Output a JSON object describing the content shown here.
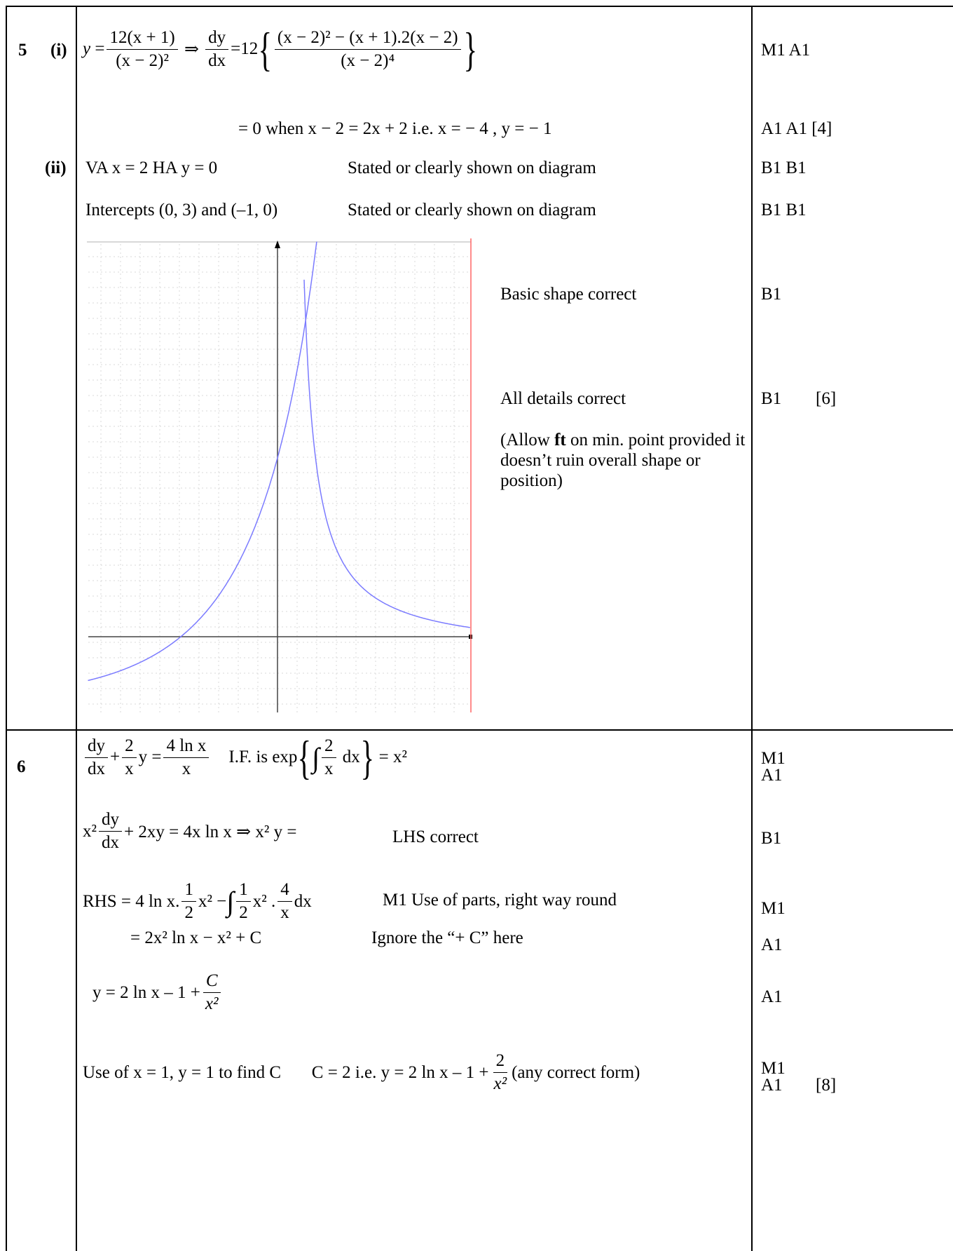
{
  "q5": {
    "number": "5",
    "part_i_label": "(i)",
    "part_ii_label": "(ii)",
    "eq1_y": "y",
    "eq1_num": "12(x + 1)",
    "eq1_den": "(x − 2)²",
    "eq1_dy": "dy",
    "eq1_dx": "dx",
    "eq1_coef": "12",
    "eq1_inner_num": "(x − 2)² − (x + 1).2(x − 2)",
    "eq1_inner_den": "(x − 2)⁴",
    "eq1_marks": "M1 A1",
    "eq2": "= 0  when  x − 2 = 2x + 2   i.e.  x = − 4 ,  y = − 1",
    "eq2_marks": "A1 A1 [4]",
    "va_ha": "VA  x = 2        HA  y = 0",
    "stated1": "Stated or clearly shown on diagram",
    "va_marks": "B1 B1",
    "intercepts": "Intercepts  (0, 3)   and  (–1, 0)",
    "stated2": "Stated or clearly shown on diagram",
    "int_marks": "B1 B1",
    "basic_shape": "Basic shape correct",
    "basic_marks": "B1",
    "all_details": "All details correct",
    "all_marks": "B1",
    "total_marks": "[6]",
    "allow_prefix": "(Allow ",
    "allow_ft": "ft",
    "allow_rest": " on min. point provided it doesn’t ruin overall shape or position)"
  },
  "q6": {
    "number": "6",
    "l1_dy": "dy",
    "l1_dx": "dx",
    "l1_2": "2",
    "l1_x": "x",
    "l1_mid": "y =",
    "l1_rnum": "4 ln x",
    "l1_rden": "x",
    "l1_if": "I.F. is  exp",
    "l1_inum": "2",
    "l1_iden": "x",
    "l1_end": "= x²",
    "l1_marks_a": "M1",
    "l1_marks_b": "A1",
    "l2_start": "x²",
    "l2_end": "+ 2xy = 4x ln x  ⇒  x² y =",
    "l2_note": "LHS correct",
    "l2_marks": "B1",
    "l3_start": "RHS =  4 ln x.",
    "l3_h1": "1",
    "l3_h2": "2",
    "l3_mid": "x² − ",
    "l3_mid2": "x² .",
    "l3_fn": "4",
    "l3_fd": "x",
    "l3_end": " dx",
    "l3_note": "M1 Use of parts, right way round",
    "l3_marks": "M1",
    "l4": "=  2x² ln x − x² + C",
    "l4_note": "Ignore the “+ C” here",
    "l4_marks": "A1",
    "l5_start": "y = 2 ln x – 1 + ",
    "l5_num": "C",
    "l5_den": "x²",
    "l5_marks": "A1",
    "l6_a": "Use of  x = 1, y = 1  to find C",
    "l6_b": "C = 2  i.e.  y = 2 ln x – 1 + ",
    "l6_num": "2",
    "l6_den": "x²",
    "l6_c": " (any correct form)",
    "l6_marks_a": "M1",
    "l6_marks_b": "A1",
    "l6_total": "[8]"
  },
  "chart_data": {
    "type": "line",
    "title": "",
    "function": "y = 12(x+1)/(x-2)^2",
    "asymptotes": {
      "vertical": "x = 2",
      "horizontal": "y = 0"
    },
    "intercepts": [
      [
        0,
        3
      ],
      [
        -1,
        0
      ]
    ],
    "minimum": [
      -4,
      -1
    ],
    "grid": true,
    "series_color": "#7b7bff",
    "asymptote_color": "#ff6666"
  }
}
